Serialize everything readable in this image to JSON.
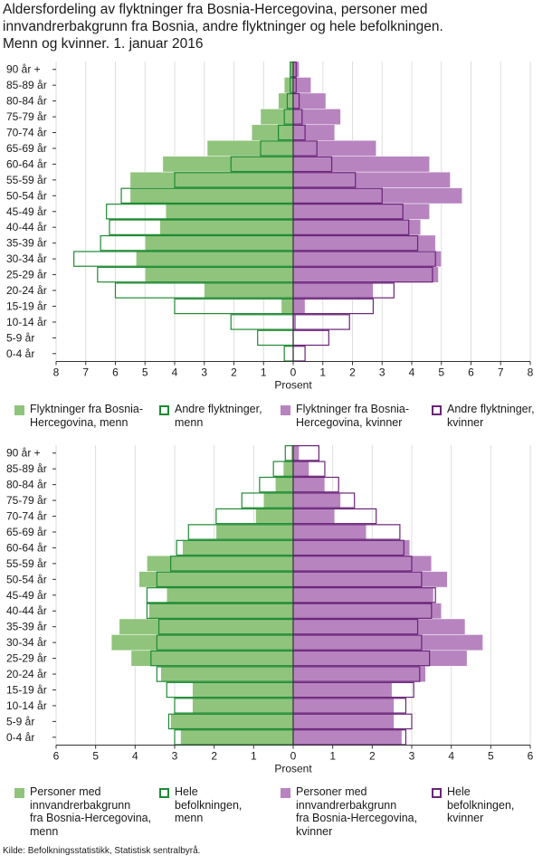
{
  "title_lines": [
    "Aldersfordeling av flyktninger fra Bosnia-Hercegovina, personer med",
    "innvandrerbakgrunn fra Bosnia, andre flyktninger og hele befolkningen.",
    "Menn og kvinner. 1. januar 2016"
  ],
  "source": "Kilde: Befolkningsstatistikk, Statistisk sentralbyrå.",
  "colors": {
    "men": "#90c47c",
    "women": "#b784c0",
    "men_outline": "#1e8a32",
    "women_outline": "#6a2478",
    "axis": "#333333",
    "grid": "#dddddd"
  },
  "chart_data": [
    {
      "type": "bar",
      "subtype": "population-pyramid",
      "categories": [
        "90 år +",
        "85-89 år",
        "80-84 år",
        "75-79 år",
        "70-74 år",
        "65-69 år",
        "60-64 år",
        "55-59 år",
        "50-54 år",
        "45-49 år",
        "40-44 år",
        "35-39 år",
        "30-34 år",
        "25-29 år",
        "20-24 år",
        "15-19 år",
        "10-14 år",
        "5-9 år",
        "0-4 år"
      ],
      "xlabel": "Prosent",
      "xlim": [
        -8,
        8
      ],
      "xticks": [
        -8,
        -7,
        -6,
        -5,
        -4,
        -3,
        -2,
        -1,
        0,
        1,
        2,
        3,
        4,
        5,
        6,
        7,
        8
      ],
      "xtick_labels": [
        "8",
        "7",
        "6",
        "5",
        "4",
        "3",
        "2",
        "1",
        "0",
        "1",
        "2",
        "3",
        "4",
        "5",
        "6",
        "7",
        "8"
      ],
      "series": [
        {
          "name": "Flyktninger fra Bosnia-Hercegovina, menn",
          "side": "left",
          "style": "filled",
          "values": [
            0.1,
            0.3,
            0.5,
            1.1,
            1.4,
            2.9,
            4.4,
            5.5,
            5.5,
            4.3,
            4.5,
            5.0,
            5.3,
            5.0,
            3.0,
            0.4,
            0.0,
            0.0,
            0.0
          ]
        },
        {
          "name": "Andre flyktninger, menn",
          "side": "left",
          "style": "outline",
          "values": [
            0.1,
            0.1,
            0.2,
            0.3,
            0.5,
            1.1,
            2.1,
            4.0,
            5.8,
            6.3,
            6.2,
            6.5,
            7.4,
            6.6,
            6.0,
            4.0,
            2.1,
            1.2,
            0.3
          ]
        },
        {
          "name": "Flyktninger fra Bosnia-Hercegovina, kvinner",
          "side": "right",
          "style": "filled",
          "values": [
            0.2,
            0.6,
            1.1,
            1.6,
            1.4,
            2.8,
            4.6,
            5.3,
            5.7,
            4.6,
            4.3,
            4.8,
            5.0,
            4.9,
            2.7,
            0.4,
            0.1,
            0.0,
            0.0
          ]
        },
        {
          "name": "Andre flyktninger, kvinner",
          "side": "right",
          "style": "outline",
          "values": [
            0.1,
            0.1,
            0.2,
            0.3,
            0.4,
            0.8,
            1.3,
            2.1,
            3.0,
            3.7,
            3.9,
            4.2,
            4.8,
            4.7,
            3.4,
            2.7,
            1.9,
            1.2,
            0.4
          ]
        }
      ],
      "legend": "bottom"
    },
    {
      "type": "bar",
      "subtype": "population-pyramid",
      "categories": [
        "90 år +",
        "85-89 år",
        "80-84 år",
        "75-79 år",
        "70-74 år",
        "65-69 år",
        "60-64 år",
        "55-59 år",
        "50-54 år",
        "45-49 år",
        "40-44 år",
        "35-39 år",
        "30-34 år",
        "25-29 år",
        "20-24 år",
        "15-19 år",
        "10-14 år",
        "5-9 år",
        "0-4 år"
      ],
      "xlabel": "Prosent",
      "xlim": [
        -6,
        6
      ],
      "xticks": [
        -6,
        -5,
        -4,
        -3,
        -2,
        -1,
        0,
        1,
        2,
        3,
        4,
        5,
        6
      ],
      "xtick_labels": [
        "6",
        "5",
        "4",
        "3",
        "2",
        "1",
        "0",
        "1",
        "2",
        "3",
        "4",
        "5",
        "6"
      ],
      "series": [
        {
          "name": "Personer med innvandrerbakgrunn fra Bosnia-Hercegovina, menn",
          "side": "left",
          "style": "filled",
          "values": [
            0.05,
            0.25,
            0.45,
            0.75,
            0.95,
            1.95,
            2.8,
            3.7,
            3.9,
            3.2,
            3.65,
            4.4,
            4.6,
            4.1,
            3.35,
            2.55,
            2.55,
            3.1,
            2.85
          ]
        },
        {
          "name": "Hele befolkningen, menn",
          "side": "left",
          "style": "outline",
          "values": [
            0.2,
            0.5,
            0.85,
            1.3,
            1.95,
            2.65,
            2.95,
            3.1,
            3.45,
            3.7,
            3.7,
            3.4,
            3.45,
            3.6,
            3.45,
            3.2,
            3.0,
            3.15,
            3.0
          ]
        },
        {
          "name": "Personer med innvandrerbakgrunn fra Bosnia-Hercegovina, kvinner",
          "side": "right",
          "style": "filled",
          "values": [
            0.15,
            0.4,
            0.8,
            1.2,
            1.05,
            1.85,
            2.95,
            3.5,
            3.9,
            3.55,
            3.75,
            4.35,
            4.8,
            4.4,
            3.35,
            2.5,
            2.55,
            2.55,
            2.75
          ]
        },
        {
          "name": "Hele befolkningen, kvinner",
          "side": "right",
          "style": "outline",
          "values": [
            0.65,
            0.8,
            1.15,
            1.55,
            2.1,
            2.7,
            2.8,
            3.0,
            3.25,
            3.6,
            3.5,
            3.15,
            3.25,
            3.45,
            3.2,
            3.05,
            2.85,
            3.0,
            2.85
          ]
        }
      ],
      "legend": "bottom"
    }
  ],
  "legend1": [
    {
      "label": "Flyktninger fra Bosnia-\nHercegovina, menn",
      "style": "filled",
      "sex": "men"
    },
    {
      "label": "Andre flyktninger,\nmenn",
      "style": "outline",
      "sex": "men"
    },
    {
      "label": "Flyktninger fra Bosnia-\nHercegovina, kvinner",
      "style": "filled",
      "sex": "women"
    },
    {
      "label": "Andre flyktninger,\nkvinner",
      "style": "outline",
      "sex": "women"
    }
  ],
  "legend2": [
    {
      "label": "Personer med\ninnvandrerbakgrunn\nfra Bosnia-Hercegovina,\nmenn",
      "style": "filled",
      "sex": "men"
    },
    {
      "label": "Hele\nbefolkningen,\nmenn",
      "style": "outline",
      "sex": "men"
    },
    {
      "label": "Personer med\ninnvandrerbakgrunn\nfra Bosnia-Hercegovina,\nkvinner",
      "style": "filled",
      "sex": "women"
    },
    {
      "label": "Hele\nbefolkningen,\nkvinner",
      "style": "outline",
      "sex": "women"
    }
  ]
}
